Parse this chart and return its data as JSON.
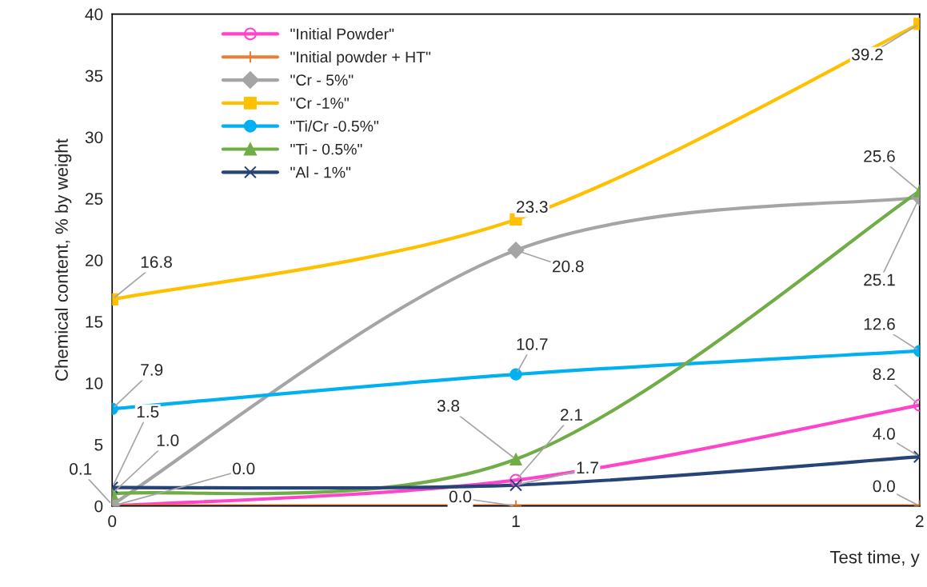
{
  "chart_data": {
    "type": "line",
    "xlabel": "Test time, y",
    "ylabel": "Chemical content, % by weight",
    "x": [
      0,
      1,
      2
    ],
    "xlim": [
      0,
      2
    ],
    "xticks": [
      0,
      1,
      2
    ],
    "ylim": [
      0,
      40
    ],
    "yticks": [
      0,
      5,
      10,
      15,
      20,
      25,
      30,
      35,
      40
    ],
    "grid": false,
    "legend": "top left",
    "line_style": "solid",
    "series": [
      {
        "name": "\"Initial Powder\"",
        "color": "#ff44cc",
        "marker": "circle",
        "values": [
          0.0,
          2.1,
          8.2
        ],
        "value_labels": [
          "0.0",
          "2.1",
          "8.2"
        ]
      },
      {
        "name": "\"Initial powder + HT\"",
        "color": "#ed7d31",
        "marker": "plus",
        "values": [
          0.0,
          0.0,
          0.0
        ],
        "value_labels": [
          null,
          "0.0",
          "0.0"
        ]
      },
      {
        "name": "\"Cr - 5%\"",
        "color": "#a5a5a5",
        "marker": "diamond",
        "values": [
          0.1,
          20.8,
          25.1
        ],
        "value_labels": [
          "0.1",
          "20.8",
          "25.1"
        ]
      },
      {
        "name": "\"Cr -1%\"",
        "color": "#ffc000",
        "marker": "square",
        "values": [
          16.8,
          23.3,
          39.2
        ],
        "value_labels": [
          "16.8",
          "23.3",
          "39.2"
        ]
      },
      {
        "name": "\"Ti/Cr -0.5%\"",
        "color": "#00b0f0",
        "marker": "circle",
        "values": [
          7.9,
          10.7,
          12.6
        ],
        "value_labels": [
          "7.9",
          "10.7",
          "12.6"
        ]
      },
      {
        "name": "\"Ti - 0.5%\"",
        "color": "#70ad47",
        "marker": "triangle",
        "values": [
          1.0,
          3.8,
          25.6
        ],
        "value_labels": [
          "1.0",
          "3.8",
          "25.6"
        ]
      },
      {
        "name": "\"Al - 1%\"",
        "color": "#264478",
        "marker": "cross",
        "values": [
          1.5,
          1.7,
          4.0
        ],
        "value_labels": [
          "1.5",
          "1.7",
          "4.0"
        ]
      }
    ]
  }
}
